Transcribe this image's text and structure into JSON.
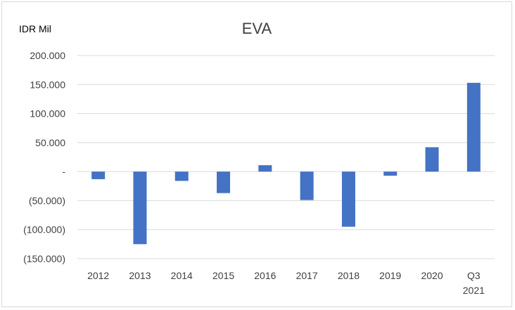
{
  "chart_data": {
    "type": "bar",
    "title": "EVA",
    "unit_label": "IDR Mil",
    "categories": [
      [
        "2012"
      ],
      [
        "2013"
      ],
      [
        "2014"
      ],
      [
        "2015"
      ],
      [
        "2016"
      ],
      [
        "2017"
      ],
      [
        "2018"
      ],
      [
        "2019"
      ],
      [
        "2020"
      ],
      [
        "Q3",
        "2021"
      ]
    ],
    "series": [
      {
        "values": [
          -13000,
          -125000,
          -16000,
          -37000,
          11000,
          -49000,
          -95000,
          -7000,
          42000,
          153000
        ],
        "color": "#4472c4"
      }
    ],
    "ylim": [
      -150000,
      200000
    ],
    "yticks": [
      200000,
      150000,
      100000,
      50000,
      0,
      -50000,
      -100000,
      -150000
    ],
    "ytick_labels": [
      "200.000",
      "150.000",
      "100.000",
      "50.000",
      "-",
      "(50.000)",
      "(100.000)",
      "(150.000)"
    ],
    "grid": true,
    "gridline_color": "#d9d9d9",
    "legend": "none"
  }
}
